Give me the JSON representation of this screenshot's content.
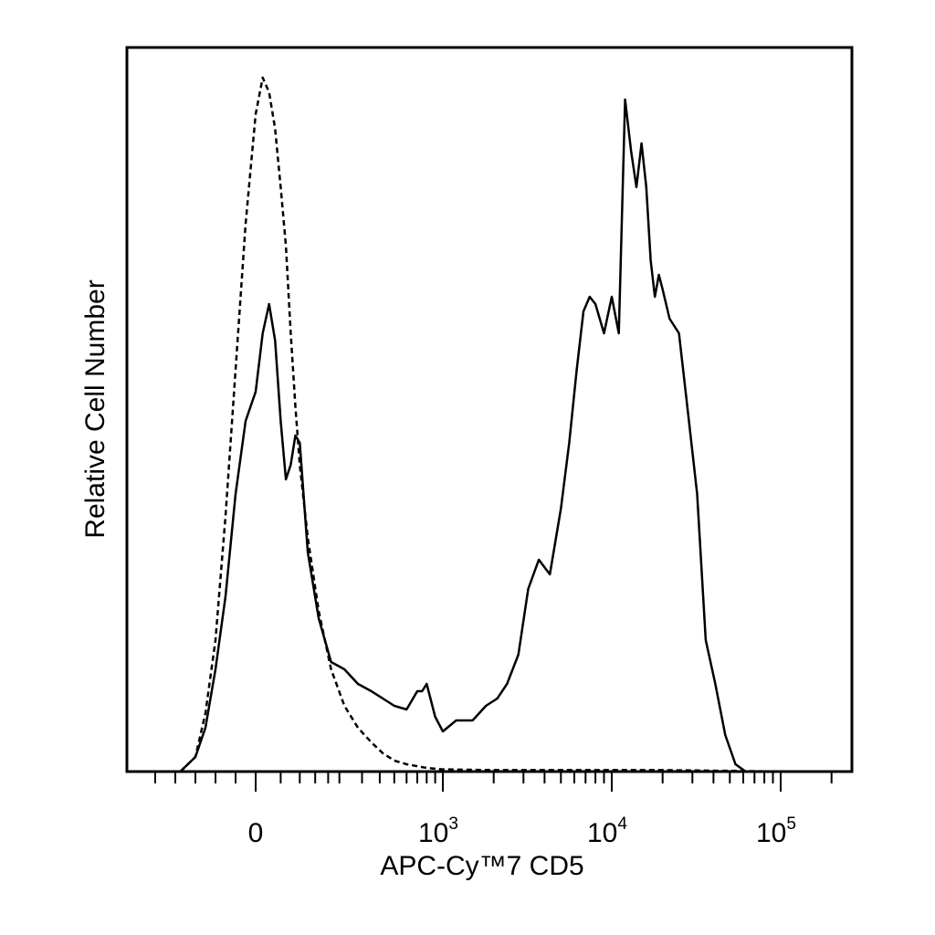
{
  "chart_data": {
    "type": "line",
    "title": "",
    "xlabel": "APC-Cy™7 CD5",
    "ylabel": "Relative Cell Number",
    "x_scale": "biexponential",
    "grid": false,
    "legend": "none",
    "xlim": [
      -200,
      200000
    ],
    "x_ticks": [
      {
        "value": 0,
        "base": "0",
        "exp": ""
      },
      {
        "value": 1000,
        "base": "10",
        "exp": "3"
      },
      {
        "value": 10000,
        "base": "10",
        "exp": "4"
      },
      {
        "value": 100000,
        "base": "10",
        "exp": "5"
      }
    ],
    "series": [
      {
        "style": "solid",
        "color": "#000000",
        "x": [
          -150,
          -120,
          -100,
          -80,
          -60,
          -40,
          -20,
          0,
          10,
          20,
          30,
          40,
          50,
          60,
          70,
          80,
          100,
          130,
          170,
          220,
          280,
          350,
          420,
          500,
          600,
          700,
          750,
          800,
          900,
          1000,
          1200,
          1500,
          1800,
          2100,
          2400,
          2800,
          3200,
          3700,
          4300,
          5000,
          5600,
          6200,
          6800,
          7400,
          8000,
          9000,
          10000,
          11000,
          12000,
          13000,
          14000,
          15000,
          16000,
          17000,
          18000,
          19000,
          20000,
          22000,
          25000,
          28000,
          32000,
          36000,
          41000,
          47000,
          54000,
          62000,
          70000,
          100000,
          200000
        ],
        "y": [
          0,
          2,
          6,
          14,
          24,
          38,
          48,
          52,
          60,
          64,
          59,
          48,
          40,
          42,
          46,
          45,
          30,
          21,
          15,
          14,
          12,
          11,
          10,
          9,
          8.5,
          11,
          11,
          12,
          7.5,
          5.5,
          7,
          7,
          9,
          10,
          12,
          16,
          25,
          29,
          27,
          36,
          45,
          55,
          63,
          65,
          64,
          60,
          65,
          60,
          92,
          85,
          80,
          86,
          80,
          70,
          65,
          68,
          66,
          62,
          60,
          50,
          38,
          18,
          12,
          5,
          1,
          0,
          0,
          0,
          0
        ]
      },
      {
        "style": "dashed",
        "color": "#000000",
        "x": [
          -150,
          -120,
          -100,
          -80,
          -60,
          -40,
          -20,
          0,
          10,
          20,
          30,
          40,
          50,
          60,
          70,
          80,
          100,
          130,
          170,
          220,
          280,
          350,
          420,
          500,
          600,
          800,
          1000,
          2000,
          5000,
          10000,
          20000,
          50000,
          100000,
          200000
        ],
        "y": [
          0,
          2,
          8,
          18,
          35,
          55,
          75,
          90,
          95,
          93,
          88,
          80,
          72,
          60,
          50,
          42,
          32,
          22,
          14,
          9,
          6,
          4,
          2.5,
          1.5,
          1,
          0.5,
          0.3,
          0.2,
          0.2,
          0.2,
          0.2,
          0.1,
          0,
          0
        ]
      }
    ]
  }
}
